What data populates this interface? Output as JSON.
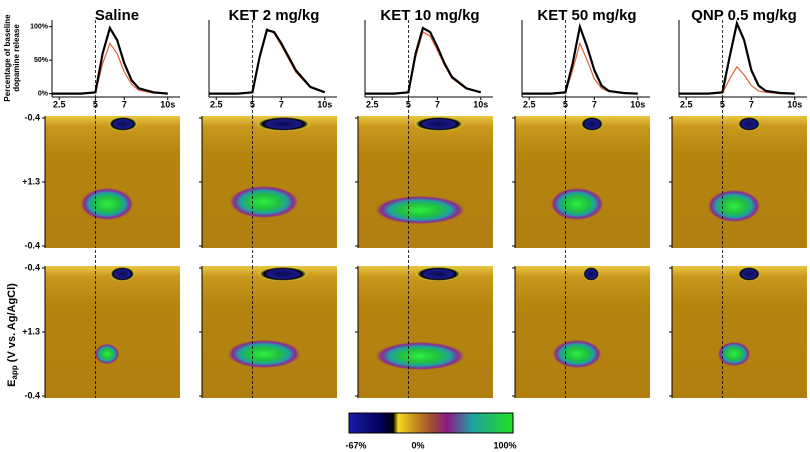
{
  "chart_data": [
    {
      "type": "line",
      "title": "Saline",
      "ylabel": [
        "Percentage of baseline",
        "dopamine release"
      ],
      "x": [
        2,
        3,
        4,
        5,
        5.5,
        6,
        6.5,
        7,
        7.5,
        8,
        9,
        10
      ],
      "series": [
        {
          "color": "#000000",
          "values": [
            0,
            0,
            0,
            2,
            60,
            98,
            80,
            45,
            20,
            8,
            2,
            0
          ]
        },
        {
          "color": "#e0603c",
          "values": [
            0,
            0,
            0,
            1,
            45,
            75,
            60,
            32,
            14,
            5,
            1,
            0
          ]
        }
      ],
      "xlim": [
        2,
        10.5
      ],
      "ylim": [
        -5,
        110
      ],
      "xticks": [
        2.5,
        5,
        7,
        {
          "value": 10,
          "label": "10s"
        }
      ],
      "yticks": [
        {
          "value": 0,
          "label": "0%"
        },
        {
          "value": 50,
          "label": "50%"
        },
        {
          "value": 100,
          "label": "100%"
        }
      ]
    },
    {
      "type": "line",
      "title": "KET 2 mg/kg",
      "x": [
        2,
        3,
        4,
        5,
        5.5,
        6,
        6.5,
        7,
        7.5,
        8,
        9,
        10
      ],
      "series": [
        {
          "color": "#000000",
          "values": [
            0,
            0,
            0,
            2,
            55,
            95,
            92,
            75,
            55,
            35,
            10,
            2
          ]
        },
        {
          "color": "#e0603c",
          "values": [
            0,
            0,
            0,
            2,
            55,
            97,
            90,
            72,
            52,
            32,
            9,
            2
          ]
        }
      ],
      "xlim": [
        2,
        10.5
      ],
      "ylim": [
        -5,
        110
      ],
      "xticks": [
        2.5,
        5,
        7,
        {
          "value": 10,
          "label": "10s"
        }
      ]
    },
    {
      "type": "line",
      "title": "KET 10 mg/kg",
      "x": [
        2,
        3,
        4,
        5,
        5.5,
        6,
        6.5,
        7,
        7.5,
        8,
        9,
        10
      ],
      "series": [
        {
          "color": "#000000",
          "values": [
            0,
            0,
            0,
            2,
            60,
            98,
            92,
            70,
            45,
            25,
            8,
            2
          ]
        },
        {
          "color": "#e0603c",
          "values": [
            0,
            0,
            0,
            2,
            55,
            92,
            86,
            65,
            42,
            23,
            7,
            2
          ]
        }
      ],
      "xlim": [
        2,
        10.5
      ],
      "ylim": [
        -5,
        110
      ],
      "xticks": [
        2.5,
        5,
        7,
        {
          "value": 10,
          "label": "10s"
        }
      ]
    },
    {
      "type": "line",
      "title": "KET 50 mg/kg",
      "x": [
        2,
        3,
        4,
        5,
        5.5,
        6,
        6.5,
        7,
        7.5,
        8,
        9,
        10
      ],
      "series": [
        {
          "color": "#000000",
          "values": [
            0,
            0,
            0,
            2,
            45,
            100,
            70,
            35,
            12,
            4,
            1,
            0
          ]
        },
        {
          "color": "#e0603c",
          "values": [
            0,
            0,
            0,
            1,
            35,
            75,
            50,
            22,
            8,
            3,
            1,
            0
          ]
        }
      ],
      "xlim": [
        2,
        10.5
      ],
      "ylim": [
        -5,
        110
      ],
      "xticks": [
        2.5,
        5,
        7,
        {
          "value": 10,
          "label": "10s"
        }
      ]
    },
    {
      "type": "line",
      "title": "QNP 0.5 mg/kg",
      "x": [
        2,
        3,
        4,
        5,
        5.5,
        6,
        6.5,
        7,
        7.5,
        8,
        9,
        10
      ],
      "series": [
        {
          "color": "#000000",
          "values": [
            0,
            0,
            0,
            2,
            55,
            105,
            80,
            35,
            12,
            4,
            1,
            0
          ]
        },
        {
          "color": "#e0603c",
          "values": [
            0,
            0,
            0,
            1,
            22,
            40,
            28,
            12,
            4,
            2,
            0,
            0
          ]
        }
      ],
      "xlim": [
        2,
        10.5
      ],
      "ylim": [
        -5,
        110
      ],
      "xticks": [
        2.5,
        5,
        7,
        {
          "value": 10,
          "label": "10s"
        }
      ]
    }
  ],
  "heatmaps": {
    "ylabel_main": "E",
    "ylabel_sub": "app",
    "ylabel_rest": " (V vs. Ag/AgCl)",
    "yticks": [
      "-0.4",
      "+1.3",
      "-0.4"
    ],
    "colorbar_ticks": [
      "-67%",
      "0%",
      "100%"
    ]
  }
}
